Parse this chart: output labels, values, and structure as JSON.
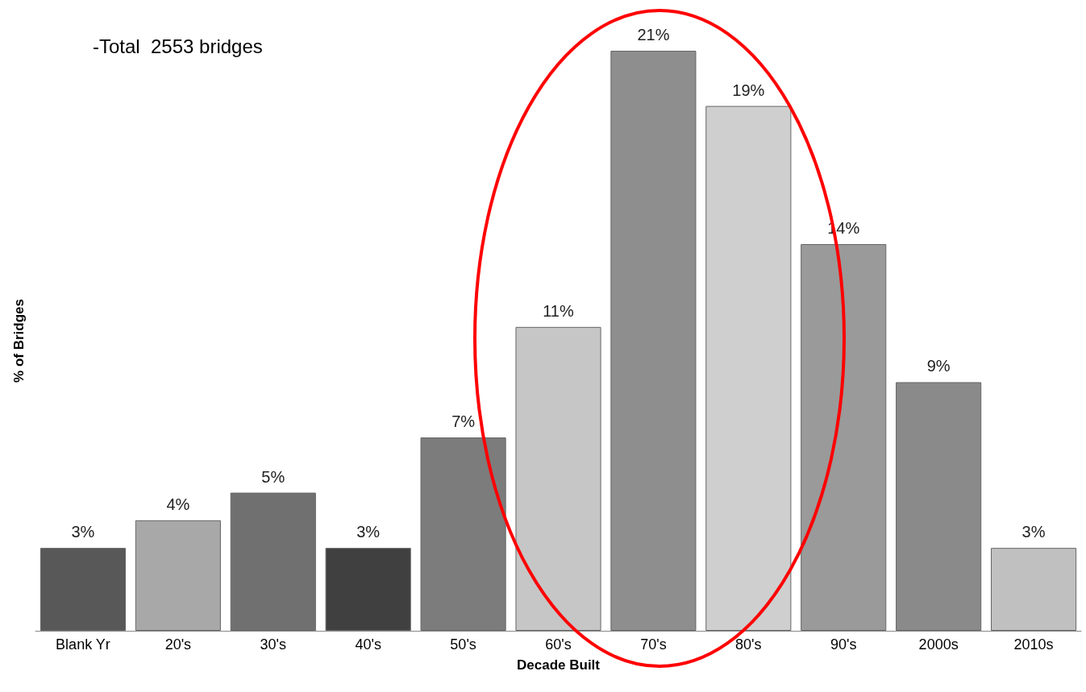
{
  "chart_data": {
    "type": "bar",
    "xlabel": "Decade Built",
    "ylabel": "% of Bridges",
    "categories": [
      "Blank Yr",
      "20's",
      "30's",
      "40's",
      "50's",
      "60's",
      "70's",
      "80's",
      "90's",
      "2000s",
      "2010s"
    ],
    "values": [
      3,
      4,
      5,
      3,
      7,
      11,
      21,
      19,
      14,
      9,
      3
    ],
    "value_labels": [
      "3%",
      "4%",
      "5%",
      "3%",
      "7%",
      "11%",
      "21%",
      "19%",
      "14%",
      "9%",
      "3%"
    ],
    "colors": [
      "#585858",
      "#a8a8a8",
      "#707070",
      "#404040",
      "#7c7c7c",
      "#c6c6c6",
      "#8e8e8e",
      "#cfcfcf",
      "#9a9a9a",
      "#8a8a8a",
      "#c0c0c0"
    ],
    "annotations": [
      "-Total  2553 bridges"
    ]
  }
}
